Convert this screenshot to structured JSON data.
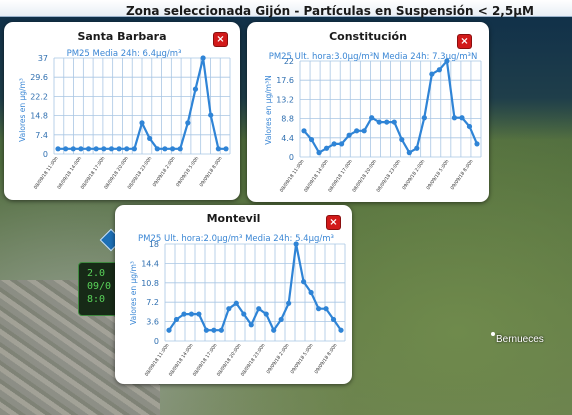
{
  "header": {
    "title": "Zona seleccionada Gijón - Partículas en Suspensión < 2,5µM"
  },
  "map": {
    "place_label": "Bernueces",
    "hidden_box_lines": [
      "2.0",
      "09/0",
      "8:0"
    ]
  },
  "icons": {
    "close": "close-icon",
    "marker": "map-marker-icon"
  },
  "colors": {
    "line": "#2f84d6",
    "grid": "#a9c6e4",
    "close_button": "#d21a1a",
    "header_text": "#1a1a1a"
  },
  "panels": [
    {
      "id": "santa-barbara",
      "title": "Santa Barbara",
      "close_label": "×",
      "chart_data": {
        "type": "line",
        "subtitle": "PM25 Media 24h: 6.4µg/m³",
        "ylabel": "Valores en µg/m³",
        "yticks": [
          "0",
          "7.4",
          "14.8",
          "22.2",
          "29.6",
          "37"
        ],
        "ylim": [
          0,
          37
        ],
        "xtick_labels": [
          "08/09/18 11:00h",
          "08/09/18 14:00h",
          "08/09/18 17:00h",
          "08/09/18 20:00h",
          "08/09/18 23:00h",
          "09/09/18 2:00h",
          "09/09/18 5:00h",
          "09/09/18 8:00h"
        ],
        "values": [
          2,
          2,
          2,
          2,
          2,
          2,
          2,
          2,
          2,
          2,
          2,
          12,
          6,
          2,
          2,
          2,
          2,
          12,
          25,
          37,
          15,
          2,
          2
        ],
        "grid": true
      }
    },
    {
      "id": "constitucion",
      "title": "Constitución",
      "close_label": "×",
      "chart_data": {
        "type": "line",
        "subtitle": "PM25 Ult. hora:3.0µg/m³N Media 24h: 7.3µg/m³N",
        "ylabel": "Valores en µg/m³N",
        "yticks": [
          "0",
          "4.4",
          "8.8",
          "13.2",
          "17.6",
          "22"
        ],
        "ylim": [
          0,
          22
        ],
        "xtick_labels": [
          "08/09/18 11:00h",
          "08/09/18 14:00h",
          "08/09/18 17:00h",
          "08/09/18 20:00h",
          "08/09/18 23:00h",
          "09/09/18 2:00h",
          "09/09/18 5:00h",
          "09/09/18 8:00h"
        ],
        "values": [
          6,
          4,
          1,
          2,
          3,
          3,
          5,
          6,
          6,
          9,
          8,
          8,
          8,
          4,
          1,
          2,
          9,
          19,
          20,
          22,
          9,
          9,
          7,
          3
        ],
        "grid": true
      }
    },
    {
      "id": "montevil",
      "title": "Montevil",
      "close_label": "×",
      "chart_data": {
        "type": "line",
        "subtitle": "PM25 Ult. hora:2.0µg/m³ Media 24h: 5.4µg/m³",
        "ylabel": "Valores en µg/m³",
        "yticks": [
          "0",
          "3.6",
          "7.2",
          "10.8",
          "14.4",
          "18"
        ],
        "ylim": [
          0,
          18
        ],
        "xtick_labels": [
          "08/09/18 11:00h",
          "08/09/18 14:00h",
          "08/09/18 17:00h",
          "08/09/18 20:00h",
          "08/09/18 23:00h",
          "09/09/18 2:00h",
          "09/09/18 5:00h",
          "09/09/18 8:00h"
        ],
        "values": [
          2,
          4,
          5,
          5,
          5,
          2,
          2,
          2,
          6,
          7,
          5,
          3,
          6,
          5,
          2,
          4,
          7,
          18,
          11,
          9,
          6,
          6,
          4,
          2
        ],
        "grid": true
      }
    }
  ]
}
